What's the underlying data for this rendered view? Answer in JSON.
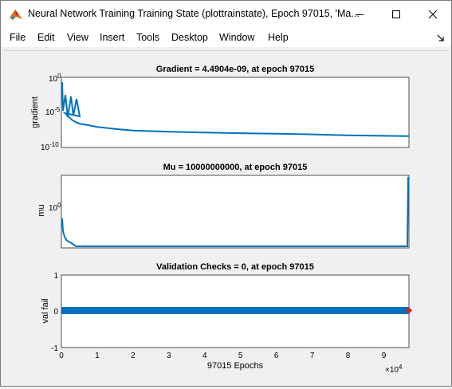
{
  "window": {
    "title": "Neural Network Training Training State (plottrainstate), Epoch 97015, 'Ma...",
    "minimize_icon": "minimize-icon",
    "maximize_icon": "maximize-icon",
    "close_icon": "close-icon"
  },
  "menu": [
    "File",
    "Edit",
    "View",
    "Insert",
    "Tools",
    "Desktop",
    "Window",
    "Help"
  ],
  "colors": {
    "line": "#0072bd",
    "marker": "#e41a1c",
    "axes_bg": "#ffffff",
    "figure_bg": "#f0f0f0"
  },
  "chart_data": [
    {
      "type": "line",
      "title": "Gradient = 4.4904e-09, at epoch 97015",
      "ylabel": "gradient",
      "yscale": "log",
      "ylim": [
        1e-10,
        1
      ],
      "yticks": [
        "10^0",
        "10^-5",
        "10^-10"
      ],
      "xlim": [
        0,
        97015
      ],
      "x": [
        0,
        500,
        1000,
        2000,
        3000,
        4000,
        5000,
        7000,
        10000,
        15000,
        20000,
        30000,
        40000,
        50000,
        60000,
        70000,
        80000,
        90000,
        97015
      ],
      "values": [
        0.1,
        0.0001,
        1e-05,
        3e-06,
        1e-06,
        5e-07,
        3e-07,
        2e-07,
        1e-07,
        5e-08,
        3e-08,
        2e-08,
        1.5e-08,
        1.2e-08,
        1e-08,
        8e-09,
        6e-09,
        5e-09,
        4.4904e-09
      ]
    },
    {
      "type": "line",
      "title": "Mu = 10000000000, at epoch 97015",
      "ylabel": "mu",
      "yscale": "log",
      "yticks": [
        "10^0"
      ],
      "xlim": [
        0,
        97015
      ],
      "x": [
        0,
        200,
        500,
        1000,
        2000,
        3000,
        4000,
        97000,
        97015
      ],
      "values": [
        1,
        0.01,
        0.001,
        0.0001,
        1e-05,
        1e-06,
        1e-07,
        1e-07,
        10000000000
      ]
    },
    {
      "type": "scatter",
      "title": "Validation Checks = 0, at epoch 97015",
      "ylabel": "val fail",
      "xlabel": "97015 Epochs",
      "ylim": [
        -1,
        1
      ],
      "yticks": [
        "1",
        "0",
        "-1"
      ],
      "xlim": [
        0,
        97015
      ],
      "xticks": [
        "0",
        "1",
        "2",
        "3",
        "4",
        "5",
        "6",
        "7",
        "8",
        "9"
      ],
      "x_exponent": "×10^4",
      "values": "0 at every epoch",
      "final_marker": {
        "x": 97015,
        "y": 0
      }
    }
  ]
}
